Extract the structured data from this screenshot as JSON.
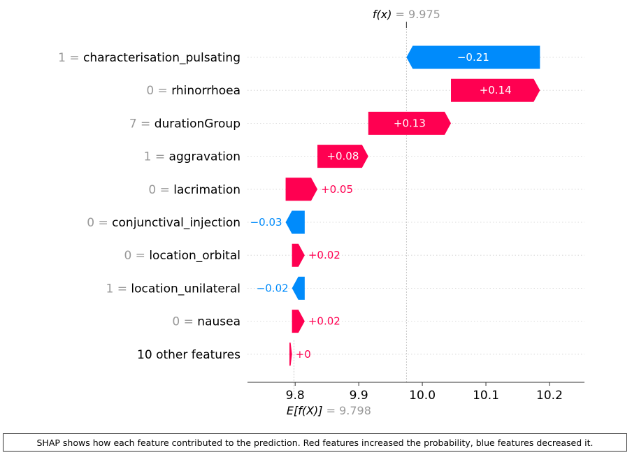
{
  "chart_data": {
    "type": "waterfall",
    "fx_label": "f(x)",
    "fx_value": "9.975",
    "efx_label": "E[f(X)]",
    "efx_value": "9.798",
    "base_value": 9.798,
    "final_value": 9.975,
    "xlim": [
      9.725,
      10.255
    ],
    "xticks": [
      9.8,
      9.9,
      10.0,
      10.1,
      10.2
    ],
    "xtick_labels": [
      "9.8",
      "9.9",
      "10.0",
      "10.1",
      "10.2"
    ],
    "features": [
      {
        "value_text": "1",
        "name": "characterisation_pulsating",
        "contribution": -0.21,
        "label": "−0.21"
      },
      {
        "value_text": "0",
        "name": "rhinorrhoea",
        "contribution": 0.14,
        "label": "+0.14"
      },
      {
        "value_text": "7",
        "name": "durationGroup",
        "contribution": 0.13,
        "label": "+0.13"
      },
      {
        "value_text": "1",
        "name": "aggravation",
        "contribution": 0.08,
        "label": "+0.08"
      },
      {
        "value_text": "0",
        "name": "lacrimation",
        "contribution": 0.05,
        "label": "+0.05"
      },
      {
        "value_text": "0",
        "name": "conjunctival_injection",
        "contribution": -0.03,
        "label": "−0.03"
      },
      {
        "value_text": "0",
        "name": "location_orbital",
        "contribution": 0.02,
        "label": "+0.02"
      },
      {
        "value_text": "1",
        "name": "location_unilateral",
        "contribution": -0.02,
        "label": "−0.02"
      },
      {
        "value_text": "0",
        "name": "nausea",
        "contribution": 0.02,
        "label": "+0.02"
      },
      {
        "value_text": "",
        "name": "10 other features",
        "contribution": 0.004,
        "label": "+0"
      }
    ],
    "colors": {
      "positive": "#ff0051",
      "negative": "#008bfb",
      "muted": "#999999",
      "axis": "#333333"
    }
  },
  "caption": "SHAP shows how each feature contributed to the prediction. Red features increased the probability, blue features decreased it."
}
